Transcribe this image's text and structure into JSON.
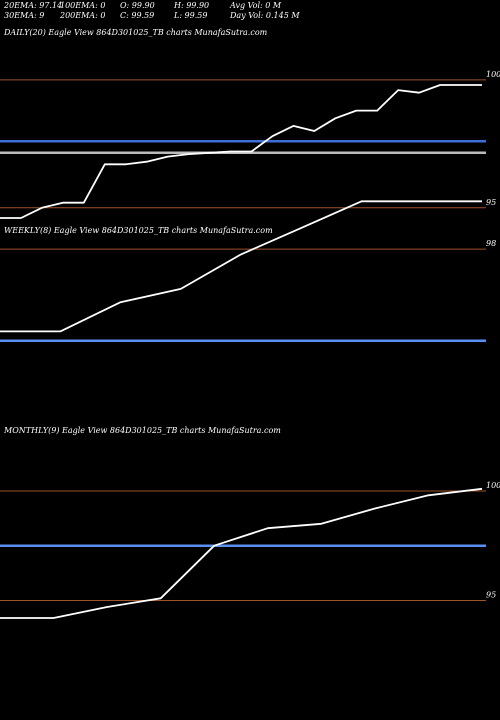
{
  "header": {
    "row1": [
      {
        "label": "20EMA: 97.14"
      },
      {
        "label": "100EMA: 0"
      },
      {
        "label": "O: 99.90"
      },
      {
        "label": "H: 99.90"
      },
      {
        "label": "Avg Vol: 0  M"
      }
    ],
    "row2": [
      {
        "label": "30EMA: 9"
      },
      {
        "label": "200EMA: 0"
      },
      {
        "label": "C: 99.59"
      },
      {
        "label": "L: 99.59"
      },
      {
        "label": "Day Vol: 0.145 M"
      }
    ]
  },
  "chart_data": [
    {
      "type": "line",
      "title": "DAILY(20) Eagle  View  864D301025_TB charts MunafaSutra.com",
      "ylim": [
        94.6,
        100.7
      ],
      "ticks": [
        {
          "value": 100,
          "label": "100"
        },
        {
          "value": 95,
          "label": "95"
        }
      ],
      "guide_lines": [
        {
          "value": 100,
          "color": "#a0522d"
        },
        {
          "value": 95,
          "color": "#a0522d"
        },
        {
          "value": 97.6,
          "color": "#3d6fd8"
        },
        {
          "value": 97.15,
          "color": "#bbbbbb"
        }
      ],
      "series": [
        {
          "values": [
            94.6,
            94.6,
            95.0,
            95.2,
            95.2,
            96.7,
            96.7,
            96.8,
            97.0,
            97.1,
            97.15,
            97.2,
            97.2,
            97.8,
            98.2,
            98.0,
            98.5,
            98.8,
            98.8,
            99.6,
            99.5,
            99.8,
            99.8,
            99.8
          ],
          "color": "#ffffff"
        }
      ]
    },
    {
      "type": "line",
      "title": "WEEKLY(8) Eagle  View  864D301025_TB charts MunafaSutra.com",
      "ylim": [
        94.2,
        99.85
      ],
      "ticks": [
        {
          "value": 98,
          "label": "98"
        }
      ],
      "guide_lines": [
        {
          "value": 98,
          "color": "#a0522d"
        },
        {
          "value": 94.55,
          "color": "#5b8fef"
        }
      ],
      "series": [
        {
          "values": [
            94.9,
            94.9,
            96.0,
            96.5,
            97.8,
            98.8,
            99.8,
            99.8,
            99.8
          ],
          "color": "#ffffff"
        }
      ]
    },
    {
      "type": "line",
      "title": "MONTHLY(9) Eagle  View  864D301025_TB charts MunafaSutra.com",
      "ylim": [
        94.2,
        100.5
      ],
      "ticks": [
        {
          "value": 100,
          "label": "100"
        },
        {
          "value": 95,
          "label": "95"
        }
      ],
      "guide_lines": [
        {
          "value": 100,
          "color": "#a0522d"
        },
        {
          "value": 95,
          "color": "#a0522d"
        },
        {
          "value": 97.5,
          "color": "#5b8fef"
        }
      ],
      "series": [
        {
          "values": [
            94.2,
            94.2,
            94.7,
            95.1,
            97.5,
            98.3,
            98.5,
            99.2,
            99.8,
            100.1
          ],
          "color": "#ffffff"
        }
      ]
    }
  ]
}
